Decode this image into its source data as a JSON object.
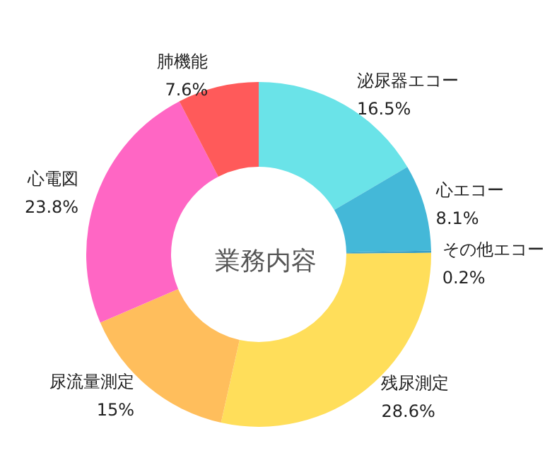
{
  "chart_data": {
    "type": "donut",
    "title": "業務内容",
    "categories": [
      "泌尿器エコー",
      "心エコー",
      "その他エコー",
      "残尿測定",
      "尿流量測定",
      "心電図",
      "肺機能"
    ],
    "values": [
      16.5,
      8.1,
      0.2,
      28.6,
      15,
      23.8,
      7.6
    ],
    "colors": [
      "#6ae3e8",
      "#44b8d8",
      "#3a9fc6",
      "#ffde5a",
      "#ffbe5c",
      "#ff66c4",
      "#ff5a5a"
    ],
    "value_labels": [
      "16.5%",
      "8.1%",
      "0.2%",
      "28.6%",
      "15%",
      "23.8%",
      "7.6%"
    ],
    "legend": false
  }
}
